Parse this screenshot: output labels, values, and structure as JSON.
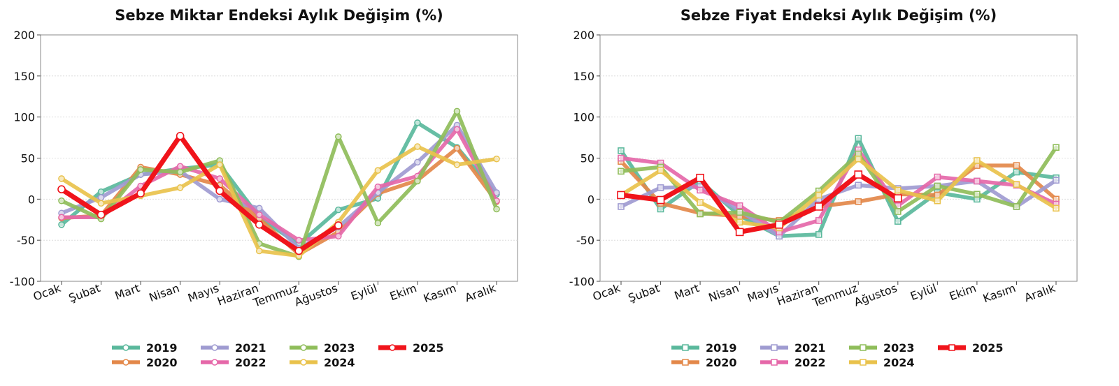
{
  "charts": [
    {
      "chart_data": {
        "type": "line",
        "title": "Sebze Miktar Endeksi Aylık Değişim (%)",
        "xlabel": "",
        "ylabel": "",
        "ylim": [
          -100,
          200
        ],
        "yticks": [
          -100,
          -50,
          0,
          50,
          100,
          150,
          200
        ],
        "grid": "horizontal",
        "legend": "bottom",
        "marker": "circle",
        "categories": [
          "Ocak",
          "Şubat",
          "Mart",
          "Nisan",
          "Mayıs",
          "Haziran",
          "Temmuz",
          "Ağustos",
          "Eylül",
          "Ekim",
          "Kasım",
          "Aralık"
        ],
        "series": [
          {
            "name": "2019",
            "color": "#5ab89c",
            "values": [
              -31,
              9,
              30,
              37,
              42,
              -22,
              -55,
              -13,
              1,
              93,
              63,
              6
            ]
          },
          {
            "name": "2020",
            "color": "#e3884a",
            "values": [
              -23,
              -20,
              39,
              30,
              17,
              -24,
              -67,
              -40,
              7,
              23,
              62,
              -3
            ]
          },
          {
            "name": "2021",
            "color": "#9f9bd1",
            "values": [
              -17,
              2,
              30,
              34,
              0,
              -11,
              -60,
              -34,
              8,
              45,
              90,
              8
            ]
          },
          {
            "name": "2022",
            "color": "#e568a9",
            "values": [
              -22,
              -22,
              16,
              40,
              25,
              -19,
              -50,
              -45,
              15,
              28,
              85,
              -2
            ]
          },
          {
            "name": "2023",
            "color": "#8fbd5a",
            "values": [
              -2,
              -24,
              36,
              33,
              47,
              -54,
              -70,
              76,
              -29,
              22,
              107,
              -12
            ]
          },
          {
            "name": "2024",
            "color": "#e9c24c",
            "values": [
              25,
              -5,
              4,
              14,
              42,
              -63,
              -69,
              -28,
              35,
              64,
              42,
              49
            ]
          },
          {
            "name": "2025",
            "color": "#f0141b",
            "values": [
              12,
              -19,
              7,
              77,
              10,
              -31,
              -63,
              -32,
              null,
              null,
              null,
              null
            ]
          }
        ]
      }
    },
    {
      "chart_data": {
        "type": "line",
        "title": "Sebze Fiyat Endeksi Aylık Değişim (%)",
        "xlabel": "",
        "ylabel": "",
        "ylim": [
          -100,
          200
        ],
        "yticks": [
          -100,
          -50,
          0,
          50,
          100,
          150,
          200
        ],
        "grid": "horizontal",
        "legend": "bottom",
        "marker": "square",
        "categories": [
          "Ocak",
          "Şubat",
          "Mart",
          "Nisan",
          "Mayıs",
          "Haziran",
          "Temmuz",
          "Ağustos",
          "Eylül",
          "Ekim",
          "Kasım",
          "Aralık"
        ],
        "series": [
          {
            "name": "2019",
            "color": "#5ab89c",
            "values": [
              59,
              -12,
              22,
              -20,
              -45,
              -43,
              74,
              -27,
              8,
              0,
              33,
              26
            ]
          },
          {
            "name": "2020",
            "color": "#e3884a",
            "values": [
              46,
              -5,
              -17,
              -21,
              -26,
              -9,
              -3,
              6,
              5,
              41,
              41,
              0
            ]
          },
          {
            "name": "2021",
            "color": "#9f9bd1",
            "values": [
              -9,
              14,
              15,
              -14,
              -45,
              0,
              17,
              13,
              16,
              22,
              -9,
              23
            ]
          },
          {
            "name": "2022",
            "color": "#e568a9",
            "values": [
              50,
              44,
              11,
              -8,
              -40,
              -26,
              60,
              -8,
              27,
              22,
              17,
              -6
            ]
          },
          {
            "name": "2023",
            "color": "#8fbd5a",
            "values": [
              34,
              39,
              -18,
              -16,
              -28,
              10,
              55,
              -15,
              16,
              6,
              -9,
              63
            ]
          },
          {
            "name": "2024",
            "color": "#e9c24c",
            "values": [
              5,
              35,
              -4,
              -28,
              -35,
              5,
              49,
              11,
              -2,
              47,
              18,
              -11
            ]
          },
          {
            "name": "2025",
            "color": "#f0141b",
            "values": [
              5,
              -1,
              26,
              -40,
              -31,
              -9,
              30,
              1,
              null,
              null,
              null,
              null
            ]
          }
        ]
      }
    }
  ]
}
